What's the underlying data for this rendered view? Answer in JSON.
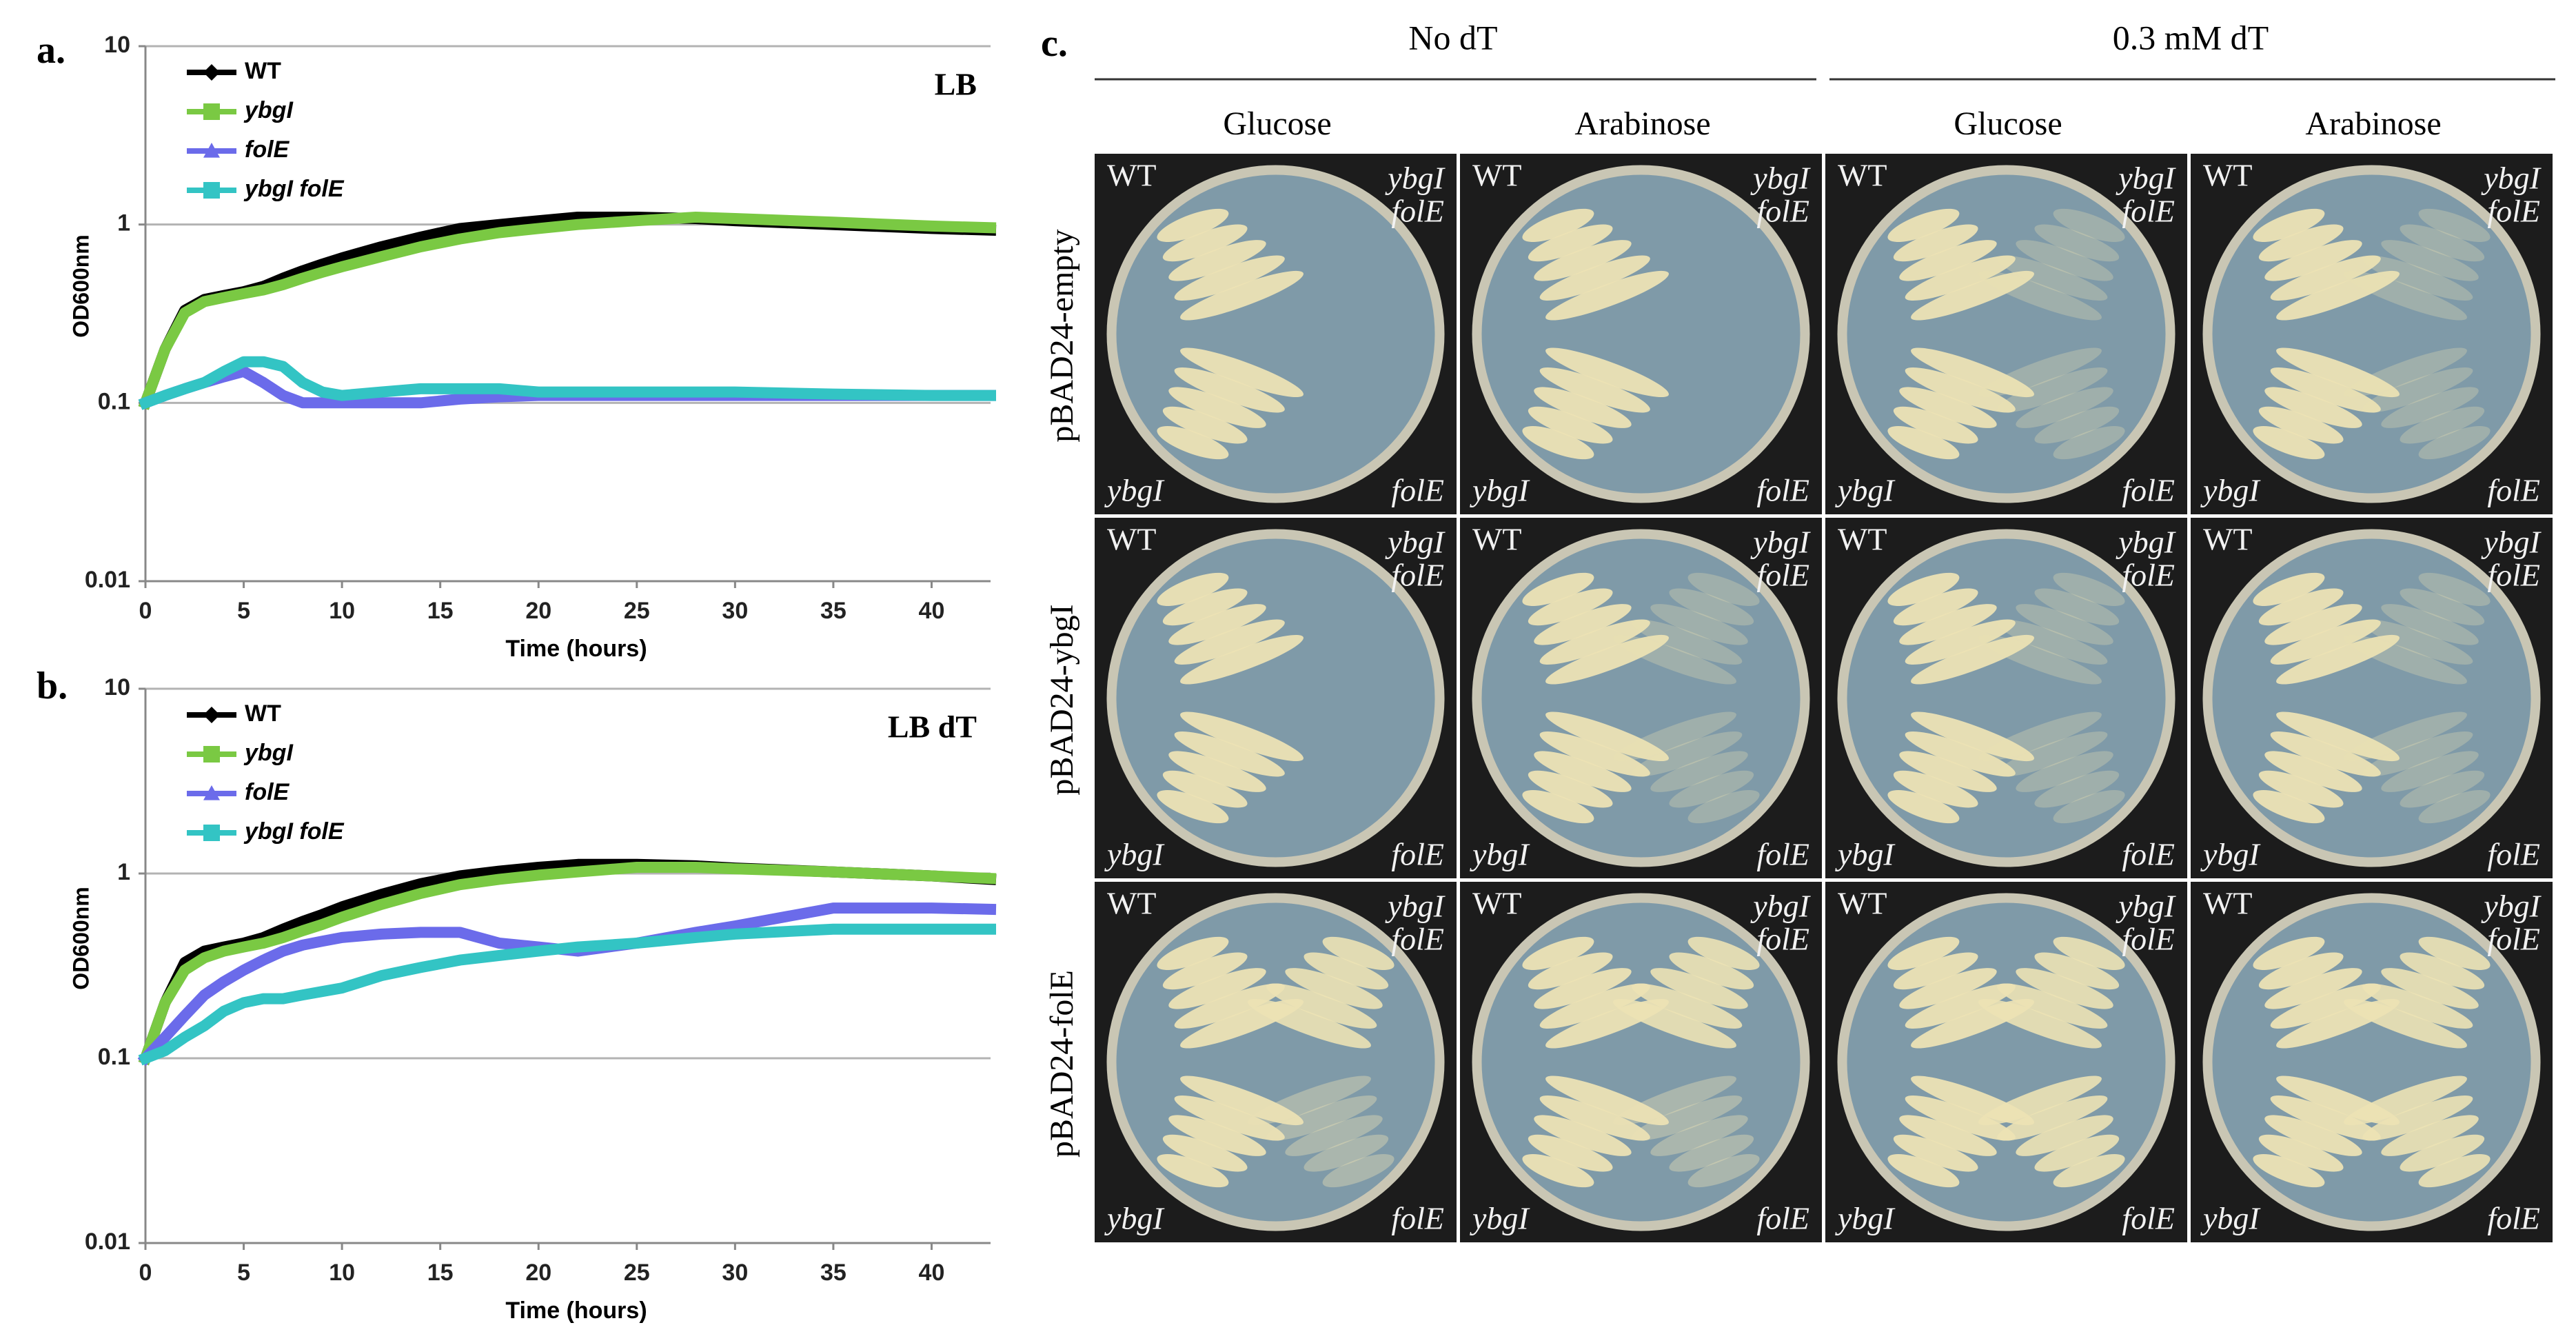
{
  "panel_labels": [
    "a.",
    "b.",
    "c."
  ],
  "chart_data": [
    {
      "type": "line",
      "annotation": "LB",
      "x_label": "Time (hours)",
      "y_label": "OD600nm",
      "log_scale": true,
      "grid": true,
      "legend": "upper left",
      "xlim": [
        0,
        43
      ],
      "xticks": [
        0,
        5,
        10,
        15,
        20,
        25,
        30,
        35,
        40
      ],
      "ylim": [
        0.01,
        10
      ],
      "yticks": [
        0.01,
        0.1,
        1,
        10
      ],
      "x": [
        0,
        1,
        2,
        3,
        4,
        5,
        6,
        7,
        8,
        9,
        10,
        12,
        14,
        16,
        18,
        20,
        22,
        25,
        28,
        30,
        35,
        40,
        43
      ],
      "series": [
        {
          "name": "WT",
          "color": "#000000",
          "marker": "diamond",
          "values": [
            0.1,
            0.2,
            0.33,
            0.38,
            0.4,
            0.42,
            0.45,
            0.5,
            0.55,
            0.6,
            0.65,
            0.75,
            0.85,
            0.95,
            1.0,
            1.05,
            1.1,
            1.1,
            1.08,
            1.05,
            1.0,
            0.95,
            0.93
          ]
        },
        {
          "name": "ybgI",
          "color": "#7ac943",
          "marker": "square",
          "values": [
            0.1,
            0.2,
            0.32,
            0.37,
            0.39,
            0.41,
            0.43,
            0.46,
            0.5,
            0.54,
            0.58,
            0.66,
            0.75,
            0.83,
            0.9,
            0.95,
            1.0,
            1.05,
            1.1,
            1.08,
            1.03,
            0.98,
            0.96
          ]
        },
        {
          "name": "folE",
          "color": "#6b6bea",
          "marker": "triangle",
          "values": [
            0.1,
            0.11,
            0.12,
            0.13,
            0.14,
            0.15,
            0.13,
            0.11,
            0.1,
            0.1,
            0.1,
            0.1,
            0.1,
            0.105,
            0.108,
            0.11,
            0.11,
            0.11,
            0.11,
            0.11,
            0.11,
            0.11,
            0.11
          ]
        },
        {
          "name": "ybgI folE",
          "color": "#33c4c4",
          "marker": "square",
          "values": [
            0.1,
            0.11,
            0.12,
            0.13,
            0.15,
            0.17,
            0.17,
            0.16,
            0.13,
            0.115,
            0.11,
            0.115,
            0.12,
            0.12,
            0.12,
            0.115,
            0.115,
            0.115,
            0.115,
            0.115,
            0.112,
            0.11,
            0.11
          ]
        }
      ]
    },
    {
      "type": "line",
      "annotation": "LB dT",
      "x_label": "Time (hours)",
      "y_label": "OD600nm",
      "log_scale": true,
      "grid": true,
      "legend": "upper left",
      "xlim": [
        0,
        43
      ],
      "xticks": [
        0,
        5,
        10,
        15,
        20,
        25,
        30,
        35,
        40
      ],
      "ylim": [
        0.01,
        10
      ],
      "yticks": [
        0.01,
        0.1,
        1,
        10
      ],
      "x": [
        0,
        1,
        2,
        3,
        4,
        5,
        6,
        7,
        8,
        9,
        10,
        12,
        14,
        16,
        18,
        20,
        22,
        25,
        28,
        30,
        35,
        40,
        43
      ],
      "series": [
        {
          "name": "WT",
          "color": "#000000",
          "marker": "diamond",
          "values": [
            0.1,
            0.2,
            0.33,
            0.38,
            0.4,
            0.42,
            0.45,
            0.5,
            0.55,
            0.6,
            0.66,
            0.77,
            0.88,
            0.97,
            1.03,
            1.08,
            1.12,
            1.12,
            1.1,
            1.07,
            1.02,
            0.97,
            0.93
          ]
        },
        {
          "name": "ybgI",
          "color": "#7ac943",
          "marker": "square",
          "values": [
            0.1,
            0.2,
            0.3,
            0.35,
            0.38,
            0.4,
            0.42,
            0.45,
            0.49,
            0.53,
            0.58,
            0.68,
            0.78,
            0.87,
            0.93,
            0.98,
            1.02,
            1.08,
            1.08,
            1.06,
            1.02,
            0.97,
            0.94
          ]
        },
        {
          "name": "folE",
          "color": "#6b6bea",
          "marker": "triangle",
          "values": [
            0.1,
            0.13,
            0.17,
            0.22,
            0.26,
            0.3,
            0.34,
            0.38,
            0.41,
            0.43,
            0.45,
            0.47,
            0.48,
            0.48,
            0.42,
            0.4,
            0.38,
            0.42,
            0.48,
            0.52,
            0.65,
            0.65,
            0.64
          ]
        },
        {
          "name": "ybgI folE",
          "color": "#33c4c4",
          "marker": "square",
          "values": [
            0.1,
            0.11,
            0.13,
            0.15,
            0.18,
            0.2,
            0.21,
            0.21,
            0.22,
            0.23,
            0.24,
            0.28,
            0.31,
            0.34,
            0.36,
            0.38,
            0.4,
            0.42,
            0.45,
            0.47,
            0.5,
            0.5,
            0.5
          ]
        }
      ]
    }
  ],
  "plates": {
    "groups": [
      "No dT",
      "0.3 mM dT"
    ],
    "media": [
      "Glucose",
      "Arabinose",
      "Glucose",
      "Arabinose"
    ],
    "rows": [
      "pBAD24-empty",
      "pBAD24-ybgI",
      "pBAD24-folE"
    ],
    "quadrant_labels": {
      "top_left": "WT",
      "top_right": [
        "ybgI",
        "folE"
      ],
      "bottom_left": "ybgI",
      "bottom_right": "folE"
    }
  }
}
